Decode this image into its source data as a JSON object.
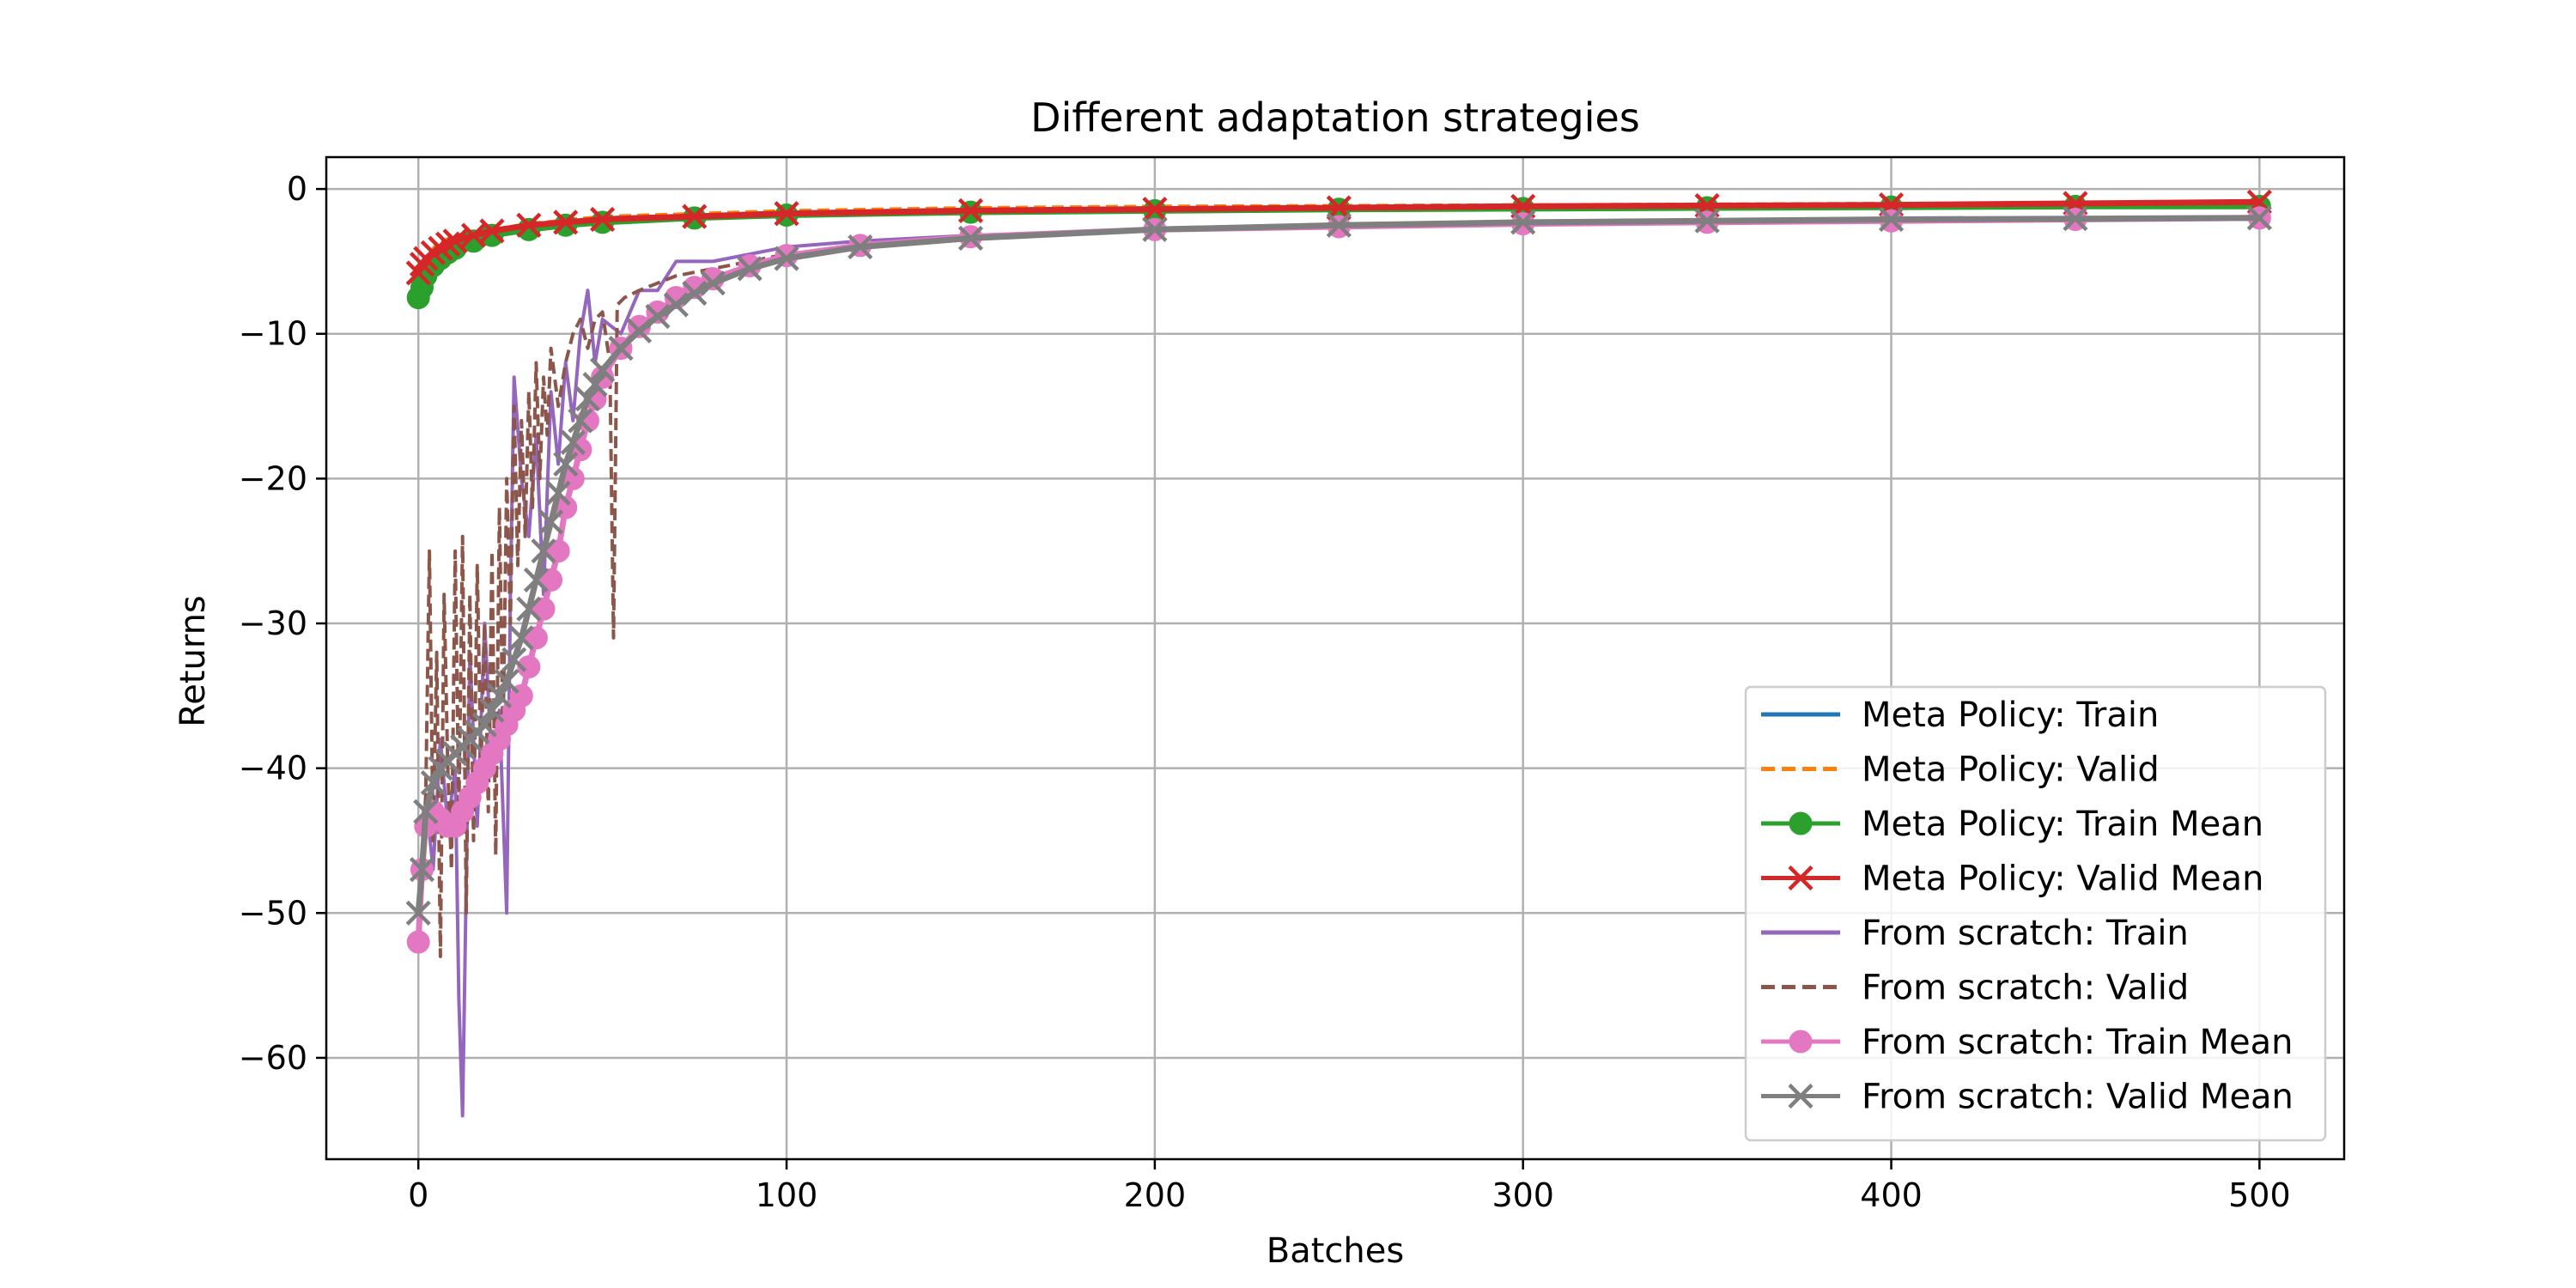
{
  "chart_data": {
    "type": "line",
    "title": "Different adaptation strategies",
    "xlabel": "Batches",
    "ylabel": "Returns",
    "xlim": [
      -25,
      523
    ],
    "ylim": [
      -67,
      2.2
    ],
    "xticks": [
      0,
      100,
      200,
      300,
      400,
      500
    ],
    "yticks": [
      0,
      -10,
      -20,
      -30,
      -40,
      -50,
      -60
    ],
    "xtick_labels": [
      "0",
      "100",
      "200",
      "300",
      "400",
      "500"
    ],
    "ytick_labels": [
      "0",
      "−10",
      "−20",
      "−30",
      "−40",
      "−50",
      "−60"
    ],
    "grid": true,
    "legend_position": "lower-right",
    "series": [
      {
        "name": "Meta Policy: Train",
        "color": "#1f77b4",
        "style": "solid",
        "marker": "none",
        "x": [
          0,
          2,
          5,
          10,
          15,
          20,
          30,
          50,
          75,
          100,
          150,
          200,
          300,
          400,
          500
        ],
        "y": [
          -6.5,
          -5.3,
          -4.5,
          -3.6,
          -3.1,
          -2.9,
          -2.5,
          -2.0,
          -1.8,
          -1.6,
          -1.4,
          -1.3,
          -1.2,
          -1.1,
          -1.0
        ]
      },
      {
        "name": "Meta Policy: Valid",
        "color": "#ff7f0e",
        "style": "dashed",
        "marker": "none",
        "x": [
          0,
          2,
          5,
          10,
          15,
          20,
          30,
          50,
          75,
          100,
          150,
          200,
          300,
          400,
          500
        ],
        "y": [
          -5.5,
          -4.8,
          -3.8,
          -3.2,
          -3.0,
          -2.8,
          -2.4,
          -1.9,
          -1.7,
          -1.5,
          -1.3,
          -1.2,
          -1.1,
          -1.0,
          -0.9
        ]
      },
      {
        "name": "Meta Policy: Train Mean",
        "color": "#2ca02c",
        "style": "solid",
        "marker": "circle",
        "x": [
          0,
          1,
          2,
          4,
          6,
          8,
          10,
          15,
          20,
          30,
          40,
          50,
          75,
          100,
          150,
          200,
          250,
          300,
          350,
          400,
          450,
          500
        ],
        "y": [
          -7.5,
          -6.8,
          -6.0,
          -5.3,
          -4.8,
          -4.4,
          -4.1,
          -3.6,
          -3.2,
          -2.8,
          -2.5,
          -2.3,
          -2.0,
          -1.8,
          -1.6,
          -1.5,
          -1.4,
          -1.35,
          -1.3,
          -1.25,
          -1.2,
          -1.2
        ]
      },
      {
        "name": "Meta Policy: Valid Mean",
        "color": "#d62728",
        "style": "solid",
        "marker": "x",
        "x": [
          0,
          1,
          2,
          4,
          6,
          8,
          10,
          15,
          20,
          30,
          40,
          50,
          75,
          100,
          150,
          200,
          250,
          300,
          350,
          400,
          450,
          500
        ],
        "y": [
          -5.8,
          -5.2,
          -4.8,
          -4.4,
          -4.1,
          -3.8,
          -3.6,
          -3.2,
          -2.9,
          -2.5,
          -2.3,
          -2.1,
          -1.9,
          -1.7,
          -1.5,
          -1.4,
          -1.3,
          -1.2,
          -1.15,
          -1.1,
          -1.0,
          -0.9
        ]
      },
      {
        "name": "From scratch: Train",
        "color": "#9467bd",
        "style": "solid",
        "marker": "none",
        "x": [
          0,
          2,
          4,
          6,
          8,
          10,
          11,
          12,
          14,
          16,
          18,
          20,
          22,
          24,
          25,
          26,
          28,
          30,
          32,
          34,
          36,
          38,
          40,
          42,
          44,
          46,
          48,
          50,
          55,
          60,
          65,
          70,
          80,
          90,
          100,
          120,
          150,
          200,
          250,
          300,
          400,
          500
        ],
        "y": [
          -50,
          -42,
          -47,
          -38,
          -44,
          -40,
          -56,
          -64,
          -32,
          -44,
          -30,
          -40,
          -36,
          -50,
          -28,
          -13,
          -20,
          -24,
          -17,
          -28,
          -14,
          -19,
          -12,
          -16,
          -10,
          -7,
          -12,
          -9,
          -10,
          -7,
          -7,
          -5,
          -5,
          -4.5,
          -4,
          -3.6,
          -3.2,
          -2.8,
          -2.6,
          -2.4,
          -2.2,
          -2.0
        ]
      },
      {
        "name": "From scratch: Valid",
        "color": "#8c564b",
        "style": "dashed",
        "marker": "none",
        "x": [
          0,
          2,
          3,
          4,
          5,
          6,
          7,
          8,
          9,
          10,
          11,
          12,
          13,
          14,
          15,
          16,
          17,
          18,
          19,
          20,
          21,
          22,
          23,
          24,
          25,
          26,
          27,
          28,
          29,
          30,
          31,
          32,
          33,
          34,
          35,
          36,
          38,
          40,
          42,
          44,
          46,
          48,
          50,
          52,
          53,
          54,
          56,
          60,
          65,
          70,
          80,
          90,
          100
        ],
        "y": [
          -50,
          -42,
          -25,
          -45,
          -32,
          -53,
          -28,
          -40,
          -47,
          -25,
          -43,
          -24,
          -50,
          -28,
          -45,
          -26,
          -40,
          -30,
          -43,
          -25,
          -46,
          -22,
          -38,
          -20,
          -30,
          -15,
          -26,
          -16,
          -24,
          -14,
          -22,
          -12,
          -20,
          -13,
          -17,
          -11,
          -15,
          -12,
          -10,
          -9,
          -11,
          -9,
          -8.5,
          -12,
          -31,
          -8,
          -7.5,
          -7,
          -6.5,
          -6,
          -5.5,
          -5,
          -4.5
        ]
      },
      {
        "name": "From scratch: Train Mean",
        "color": "#e377c2",
        "style": "solid",
        "marker": "circle",
        "x": [
          0,
          1,
          2,
          4,
          6,
          8,
          10,
          12,
          14,
          16,
          18,
          20,
          22,
          24,
          26,
          28,
          30,
          32,
          34,
          36,
          38,
          40,
          42,
          44,
          46,
          48,
          50,
          55,
          60,
          65,
          70,
          75,
          80,
          90,
          100,
          120,
          150,
          200,
          250,
          300,
          350,
          400,
          450,
          500
        ],
        "y": [
          -52,
          -47,
          -44,
          -43,
          -43.5,
          -44,
          -44,
          -43,
          -42,
          -41,
          -40,
          -39,
          -38,
          -37,
          -36,
          -35,
          -33,
          -31,
          -29,
          -27,
          -25,
          -22,
          -20,
          -18,
          -16,
          -14.5,
          -13,
          -11,
          -9.5,
          -8.5,
          -7.5,
          -6.8,
          -6.2,
          -5.3,
          -4.6,
          -3.9,
          -3.3,
          -2.8,
          -2.6,
          -2.4,
          -2.3,
          -2.2,
          -2.1,
          -2.0
        ]
      },
      {
        "name": "From scratch: Valid Mean",
        "color": "#7f7f7f",
        "style": "solid",
        "marker": "x",
        "x": [
          0,
          1,
          2,
          4,
          6,
          8,
          10,
          12,
          14,
          16,
          18,
          20,
          22,
          24,
          26,
          28,
          30,
          32,
          34,
          36,
          38,
          40,
          42,
          44,
          46,
          48,
          50,
          55,
          60,
          65,
          70,
          75,
          80,
          90,
          100,
          120,
          150,
          200,
          250,
          300,
          350,
          400,
          450,
          500
        ],
        "y": [
          -50,
          -47,
          -43,
          -41,
          -40,
          -39.5,
          -39,
          -38.5,
          -38,
          -37.5,
          -37,
          -36,
          -35,
          -34,
          -32.5,
          -31,
          -29,
          -27,
          -25,
          -23,
          -21,
          -19,
          -17.5,
          -16,
          -14.5,
          -13.5,
          -12.5,
          -11,
          -9.8,
          -8.8,
          -8,
          -7.2,
          -6.5,
          -5.5,
          -4.8,
          -4.0,
          -3.4,
          -2.8,
          -2.5,
          -2.3,
          -2.2,
          -2.1,
          -2.05,
          -2.0
        ]
      }
    ]
  }
}
